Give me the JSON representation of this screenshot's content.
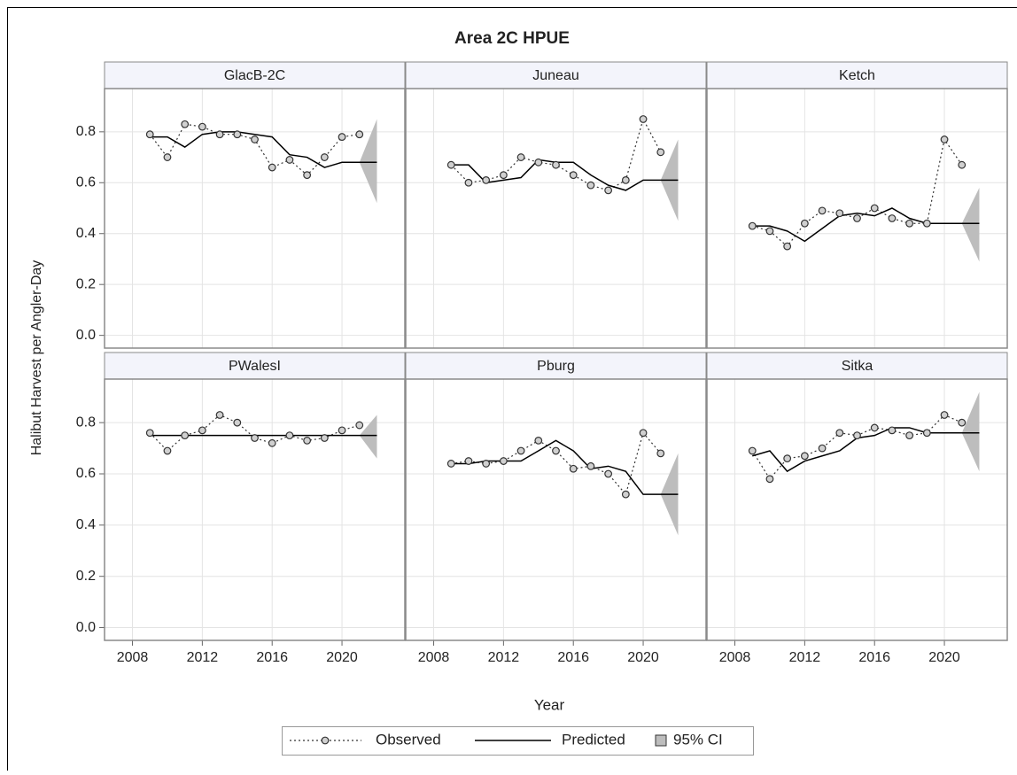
{
  "chart_data": {
    "type": "line",
    "title": "Area 2C HPUE",
    "xlabel": "Year",
    "ylabel": "Halibut Harvest per Angler-Day",
    "x": [
      2009,
      2010,
      2011,
      2012,
      2013,
      2014,
      2015,
      2016,
      2017,
      2018,
      2019,
      2020,
      2021,
      2022
    ],
    "xlim": [
      2006.4,
      2023.6
    ],
    "xticks": [
      2008,
      2012,
      2016,
      2020
    ],
    "ylim": [
      -0.05,
      0.97
    ],
    "yticks": [
      {
        "value": 0,
        "label": "0.0"
      },
      0.2,
      0.4,
      0.6,
      0.8
    ],
    "grid": true,
    "legend": [
      {
        "name": "Observed",
        "color": "#333333"
      },
      {
        "name": "Predicted",
        "color": "#000000"
      },
      {
        "name": "95% CI",
        "color": "#bdbdbd"
      }
    ],
    "panels": [
      {
        "title": "GlacB-2C",
        "observed": [
          0.79,
          0.7,
          0.83,
          0.82,
          0.79,
          0.79,
          0.77,
          0.66,
          0.69,
          0.63,
          0.7,
          0.78,
          0.79,
          null
        ],
        "predicted": [
          0.78,
          0.78,
          0.74,
          0.79,
          0.8,
          0.8,
          0.79,
          0.78,
          0.71,
          0.7,
          0.66,
          0.68,
          0.68,
          0.68
        ],
        "ci_lower": [
          null,
          null,
          null,
          null,
          null,
          null,
          null,
          null,
          null,
          null,
          null,
          null,
          0.68,
          0.52
        ],
        "ci_upper": [
          null,
          null,
          null,
          null,
          null,
          null,
          null,
          null,
          null,
          null,
          null,
          null,
          0.68,
          0.85
        ]
      },
      {
        "title": "Juneau",
        "observed": [
          0.67,
          0.6,
          0.61,
          0.63,
          0.7,
          0.68,
          0.67,
          0.63,
          0.59,
          0.57,
          0.61,
          0.85,
          0.72,
          null
        ],
        "predicted": [
          0.67,
          0.67,
          0.6,
          0.61,
          0.62,
          0.69,
          0.68,
          0.68,
          0.63,
          0.59,
          0.57,
          0.61,
          0.61,
          0.61
        ],
        "ci_lower": [
          null,
          null,
          null,
          null,
          null,
          null,
          null,
          null,
          null,
          null,
          null,
          null,
          0.61,
          0.45
        ],
        "ci_upper": [
          null,
          null,
          null,
          null,
          null,
          null,
          null,
          null,
          null,
          null,
          null,
          null,
          0.61,
          0.77
        ]
      },
      {
        "title": "Ketch",
        "observed": [
          0.43,
          0.41,
          0.35,
          0.44,
          0.49,
          0.48,
          0.46,
          0.5,
          0.46,
          0.44,
          0.44,
          0.77,
          0.67,
          null
        ],
        "predicted": [
          0.43,
          0.43,
          0.41,
          0.37,
          0.42,
          0.47,
          0.48,
          0.47,
          0.5,
          0.46,
          0.44,
          0.44,
          0.44,
          0.44
        ],
        "ci_lower": [
          null,
          null,
          null,
          null,
          null,
          null,
          null,
          null,
          null,
          null,
          null,
          null,
          0.44,
          0.29
        ],
        "ci_upper": [
          null,
          null,
          null,
          null,
          null,
          null,
          null,
          null,
          null,
          null,
          null,
          null,
          0.44,
          0.58
        ]
      },
      {
        "title": "PWalesI",
        "observed": [
          0.76,
          0.69,
          0.75,
          0.77,
          0.83,
          0.8,
          0.74,
          0.72,
          0.75,
          0.73,
          0.74,
          0.77,
          0.79,
          null
        ],
        "predicted": [
          0.75,
          0.75,
          0.75,
          0.75,
          0.75,
          0.75,
          0.75,
          0.75,
          0.75,
          0.75,
          0.75,
          0.75,
          0.75,
          0.75
        ],
        "ci_lower": [
          null,
          null,
          null,
          null,
          null,
          null,
          null,
          null,
          null,
          null,
          null,
          null,
          0.75,
          0.66
        ],
        "ci_upper": [
          null,
          null,
          null,
          null,
          null,
          null,
          null,
          null,
          null,
          null,
          null,
          null,
          0.75,
          0.83
        ]
      },
      {
        "title": "Pburg",
        "observed": [
          0.64,
          0.65,
          0.64,
          0.65,
          0.69,
          0.73,
          0.69,
          0.62,
          0.63,
          0.6,
          0.52,
          0.76,
          0.68,
          null
        ],
        "predicted": [
          0.64,
          0.64,
          0.65,
          0.65,
          0.65,
          0.69,
          0.73,
          0.69,
          0.62,
          0.63,
          0.61,
          0.52,
          0.52,
          0.52
        ],
        "ci_lower": [
          null,
          null,
          null,
          null,
          null,
          null,
          null,
          null,
          null,
          null,
          null,
          null,
          0.52,
          0.36
        ],
        "ci_upper": [
          null,
          null,
          null,
          null,
          null,
          null,
          null,
          null,
          null,
          null,
          null,
          null,
          0.52,
          0.68
        ]
      },
      {
        "title": "Sitka",
        "observed": [
          0.69,
          0.58,
          0.66,
          0.67,
          0.7,
          0.76,
          0.75,
          0.78,
          0.77,
          0.75,
          0.76,
          0.83,
          0.8,
          null
        ],
        "predicted": [
          0.67,
          0.69,
          0.61,
          0.65,
          0.67,
          0.69,
          0.74,
          0.75,
          0.78,
          0.78,
          0.76,
          0.76,
          0.76,
          0.76
        ],
        "ci_lower": [
          null,
          null,
          null,
          null,
          null,
          null,
          null,
          null,
          null,
          null,
          null,
          null,
          0.76,
          0.61
        ],
        "ci_upper": [
          null,
          null,
          null,
          null,
          null,
          null,
          null,
          null,
          null,
          null,
          null,
          null,
          0.76,
          0.92
        ]
      }
    ]
  }
}
